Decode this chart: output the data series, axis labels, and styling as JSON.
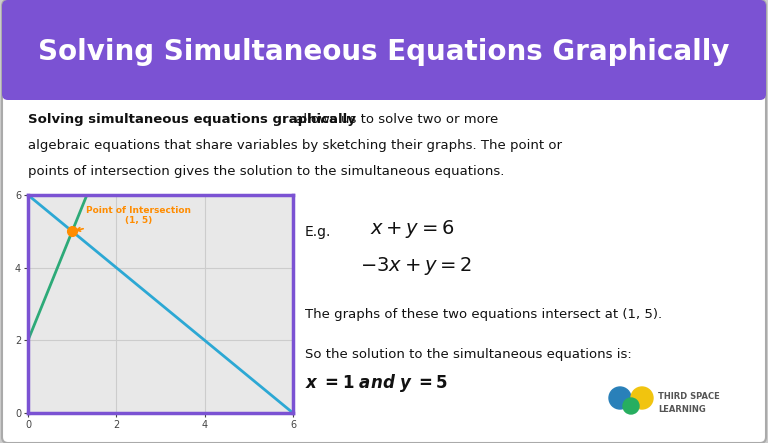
{
  "title": "Solving Simultaneous Equations Graphically",
  "title_bg": "#7B52D3",
  "title_color": "#FFFFFF",
  "card_bg": "#FFFFFF",
  "outer_bg": "#CCCCCC",
  "bold_text": "Solving simultaneous equations graphically",
  "line1_rest": " allows us to solve two or more",
  "line2": "algebraic equations that share variables by sketching their graphs. The point or",
  "line3": "points of intersection gives the solution to the simultaneous equations.",
  "eg_label": "E.g.",
  "eq1": "$x + y = 6$",
  "eq2": "$-3x + y = 2$",
  "intersect_text": "The graphs of these two equations intersect at (1, 5).",
  "solution_text": "So the solution to the simultaneous equations is:",
  "graph_xlim": [
    0,
    6
  ],
  "graph_ylim": [
    0,
    6
  ],
  "graph_xticks": [
    0,
    2,
    4,
    6
  ],
  "graph_yticks": [
    0,
    2,
    4,
    6
  ],
  "line1_color": "#2CA8D4",
  "line2_color": "#2DAA78",
  "intersection_color": "#FF8C00",
  "intersection_point": [
    1,
    5
  ],
  "annotation_text": "Point of Intersection\n(1, 5)",
  "annotation_color": "#FF8C00",
  "graph_border_color": "#7B52D3",
  "grid_color": "#CCCCCC",
  "graph_bg": "#E8E8E8",
  "text_color": "#111111",
  "tsl_blue": "#2980b9",
  "tsl_green": "#27ae60",
  "tsl_yellow": "#f1c40f"
}
